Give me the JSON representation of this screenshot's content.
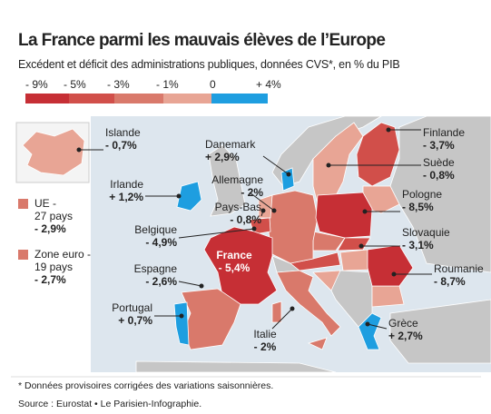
{
  "header": {
    "title": "La France parmi les mauvais élèves de l’Europe",
    "subtitle": "Excédent et déficit des administrations publiques, données CVS*, en % du PIB"
  },
  "legend": {
    "labels": [
      "- 9%",
      "- 5%",
      "- 3%",
      "- 1%",
      "0",
      "+ 4%"
    ],
    "colors": [
      "#c62f35",
      "#d14f4a",
      "#d9796b",
      "#e8a595",
      "#1e9ee0"
    ]
  },
  "aggregates": [
    {
      "lines": [
        "UE -",
        "27 pays",
        "- 2,9%"
      ],
      "color": "#d9796b"
    },
    {
      "lines": [
        "Zone euro -",
        "19 pays",
        "- 2,7%"
      ],
      "color": "#d9796b"
    }
  ],
  "countries": [
    {
      "name": "Islande",
      "value": "- 0,7%",
      "color": "#e8a595"
    },
    {
      "name": "Danemark",
      "value": "+ 2,9%",
      "color": "#1e9ee0"
    },
    {
      "name": "Finlande",
      "value": "- 3,7%",
      "color": "#d14f4a"
    },
    {
      "name": "Suède",
      "value": "- 0,8%",
      "color": "#e8a595"
    },
    {
      "name": "Irlande",
      "value": "+ 1,2%",
      "color": "#1e9ee0"
    },
    {
      "name": "Allemagne",
      "value": "- 2%",
      "color": "#d9796b"
    },
    {
      "name": "Pays-Bas",
      "value": "- 0,8%",
      "color": "#e8a595"
    },
    {
      "name": "Pologne",
      "value": "- 8,5%",
      "color": "#c62f35"
    },
    {
      "name": "Belgique",
      "value": "- 4,9%",
      "color": "#d14f4a"
    },
    {
      "name": "France",
      "value": "- 5,4%",
      "color": "#c62f35"
    },
    {
      "name": "Slovaquie",
      "value": "- 3,1%",
      "color": "#d14f4a"
    },
    {
      "name": "Espagne",
      "value": "- 2,6%",
      "color": "#d9796b"
    },
    {
      "name": "Roumanie",
      "value": "- 8,7%",
      "color": "#c62f35"
    },
    {
      "name": "Portugal",
      "value": "+ 0,7%",
      "color": "#1e9ee0"
    },
    {
      "name": "Italie",
      "value": "- 2%",
      "color": "#d9796b"
    },
    {
      "name": "Grèce",
      "value": "+ 2,7%",
      "color": "#1e9ee0"
    }
  ],
  "footnote": "* Données provisoires corrigées des variations saisonnières.",
  "source": "Source : Eurostat • Le Parisien-Infographie."
}
